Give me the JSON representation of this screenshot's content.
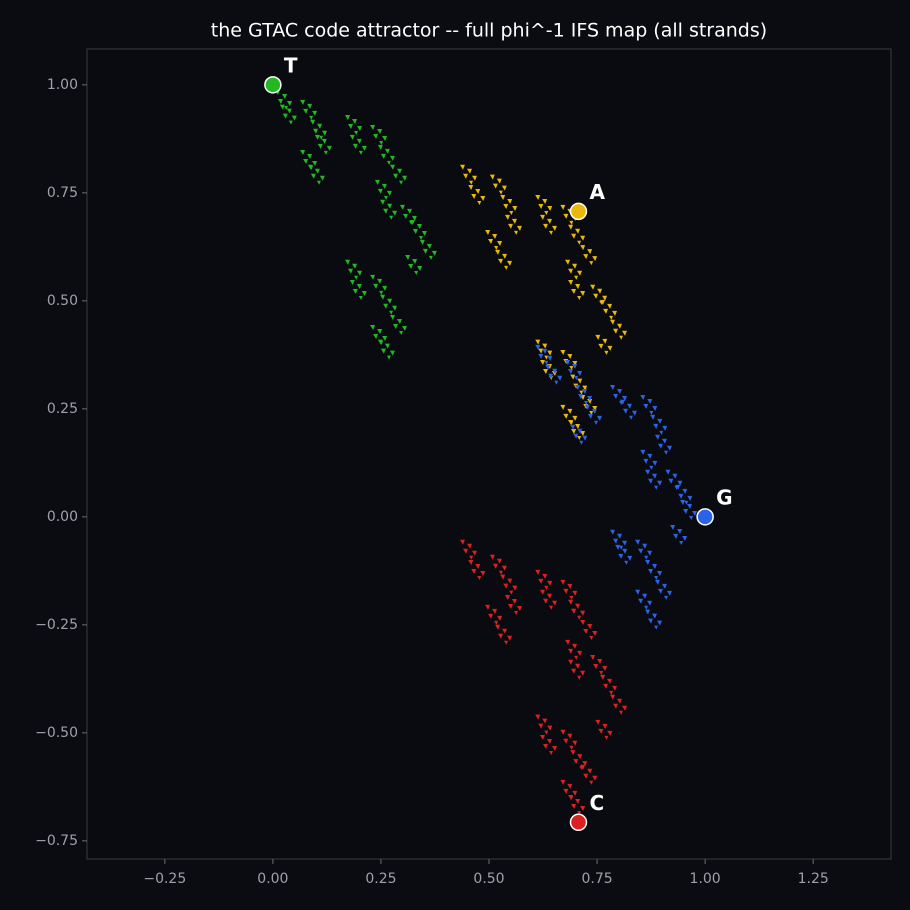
{
  "chart_data": {
    "type": "scatter",
    "title": "the GTAC code attractor  --  full phi^-1 IFS map (all strands)",
    "xlim": [
      -0.43,
      1.43
    ],
    "ylim": [
      -0.792,
      1.083
    ],
    "xticks": [
      {
        "value": -0.25,
        "label": "−0.25"
      },
      {
        "value": 0,
        "label": "0.00"
      },
      0.25,
      {
        "value": 0.5,
        "label": "0.50"
      },
      0.75,
      {
        "value": 1,
        "label": "1.00"
      },
      1.25
    ],
    "yticks": [
      {
        "value": -0.75,
        "label": "−0.75"
      },
      {
        "value": -0.5,
        "label": "−0.50"
      },
      {
        "value": -0.25,
        "label": "−0.25"
      },
      {
        "value": 0,
        "label": "0.00"
      },
      0.25,
      {
        "value": 0.5,
        "label": "0.50"
      },
      0.75,
      {
        "value": 1,
        "label": "1.00"
      }
    ],
    "series": [
      {
        "color": "#22b822",
        "x": [
          0.028,
          0.039,
          0.086,
          0.109,
          0.12,
          0.086,
          0.104,
          0.19,
          0.201,
          0.248,
          0.266,
          0.294,
          0.259,
          0.271,
          0.317,
          0.34,
          0.363,
          0.329,
          0.19,
          0.201,
          0.248,
          0.271,
          0.294,
          0.248,
          0.266
        ],
        "y": [
          0.965,
          0.931,
          0.942,
          0.896,
          0.861,
          0.826,
          0.792,
          0.907,
          0.861,
          0.884,
          0.838,
          0.792,
          0.757,
          0.711,
          0.699,
          0.664,
          0.618,
          0.583,
          0.572,
          0.525,
          0.537,
          0.491,
          0.444,
          0.421,
          0.387
        ]
      },
      {
        "color": "#e8b80a",
        "x": [
          0.456,
          0.475,
          0.525,
          0.549,
          0.56,
          0.514,
          0.537,
          0.63,
          0.641,
          0.688,
          0.706,
          0.734,
          0.699,
          0.706,
          0.757,
          0.78,
          0.803,
          0.769,
          0.63,
          0.641,
          0.688,
          0.711,
          0.734,
          0.688,
          0.706
        ],
        "y": [
          0.792,
          0.745,
          0.769,
          0.722,
          0.676,
          0.641,
          0.595,
          0.722,
          0.676,
          0.699,
          0.653,
          0.606,
          0.572,
          0.525,
          0.514,
          0.479,
          0.433,
          0.398,
          0.387,
          0.34,
          0.363,
          0.306,
          0.259,
          0.236,
          0.201
        ]
      },
      {
        "color": "#2a62e8",
        "x": [
          0.63,
          0.653,
          0.699,
          0.722,
          0.745,
          0.711,
          0.803,
          0.826,
          0.873,
          0.896,
          0.907,
          0.873,
          0.884,
          0.931,
          0.954,
          0.965,
          0.942,
          0.803,
          0.815,
          0.861,
          0.884,
          0.907,
          0.861,
          0.884
        ],
        "y": [
          0.375,
          0.329,
          0.34,
          0.282,
          0.236,
          0.19,
          0.282,
          0.248,
          0.259,
          0.213,
          0.167,
          0.132,
          0.086,
          0.086,
          0.051,
          0.016,
          -0.042,
          -0.053,
          -0.088,
          -0.076,
          -0.123,
          -0.169,
          -0.192,
          -0.238
        ]
      },
      {
        "color": "#dd2020",
        "x": [
          0.456,
          0.475,
          0.525,
          0.549,
          0.56,
          0.514,
          0.537,
          0.63,
          0.641,
          0.688,
          0.706,
          0.734,
          0.699,
          0.706,
          0.757,
          0.78,
          0.803,
          0.769,
          0.63,
          0.641,
          0.688,
          0.711,
          0.734,
          0.688,
          0.706
        ],
        "y": [
          -0.076,
          -0.123,
          -0.111,
          -0.157,
          -0.204,
          -0.227,
          -0.273,
          -0.146,
          -0.192,
          -0.169,
          -0.215,
          -0.262,
          -0.308,
          -0.354,
          -0.343,
          -0.389,
          -0.435,
          -0.493,
          -0.481,
          -0.528,
          -0.516,
          -0.563,
          -0.597,
          -0.632,
          -0.667
        ]
      }
    ],
    "vertices": {
      "labels": [
        "T",
        "A",
        "G",
        "C"
      ],
      "x": [
        0,
        0.707,
        1,
        0.707
      ],
      "y": [
        1,
        0.707,
        0,
        -0.707
      ],
      "colors": [
        "#22b822",
        "#e8b80a",
        "#2a62e8",
        "#dd2020"
      ]
    }
  }
}
